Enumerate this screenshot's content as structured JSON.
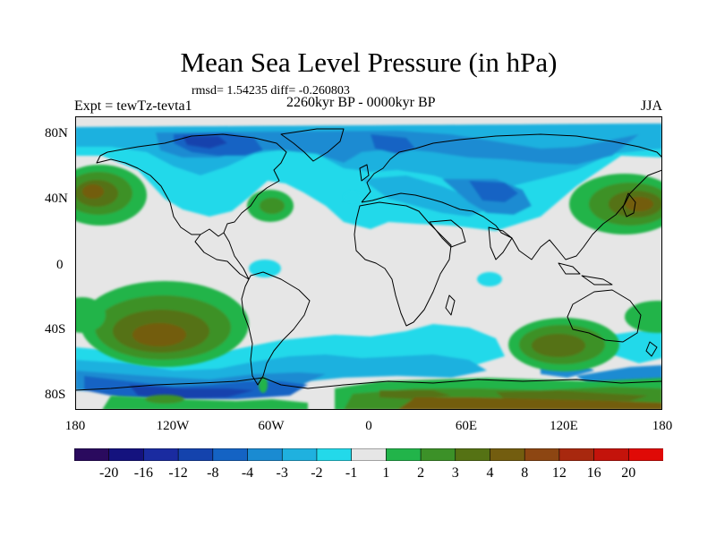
{
  "title": "Mean Sea Level Pressure (in hPa)",
  "stats": "rmsd= 1.54235 diff= -0.260803",
  "experiment": "Expt = tewTz-tevta1",
  "period": "2260kyr BP - 0000kyr BP",
  "season": "JJA",
  "lat_labels": [
    "80N",
    "40N",
    "0",
    "40S",
    "80S"
  ],
  "lon_labels": [
    "180",
    "120W",
    "60W",
    "0",
    "60E",
    "120E",
    "180"
  ],
  "colorbar": {
    "levels": [
      "-20",
      "-16",
      "-12",
      "-8",
      "-4",
      "-3",
      "-2",
      "-1",
      "1",
      "2",
      "3",
      "4",
      "8",
      "12",
      "16",
      "20"
    ],
    "colors": [
      "#2a0a5e",
      "#14127e",
      "#1a2ba0",
      "#1443ad",
      "#1463c4",
      "#1a8bd2",
      "#1fb1df",
      "#23d9ea",
      "#e6e6e6",
      "#22b44a",
      "#3c9128",
      "#557214",
      "#735d0f",
      "#8d4612",
      "#a8280e",
      "#c4130b",
      "#e00a06"
    ]
  },
  "colors": {
    "background": "#e6e6e6",
    "neg1": "#23d9ea",
    "neg2": "#1fb1df",
    "neg3": "#1a8bd2",
    "neg4": "#1463c4",
    "neg5": "#1443ad",
    "pos1": "#22b44a",
    "pos2": "#3c9128",
    "pos3": "#557214",
    "pos4": "#735d0f"
  }
}
